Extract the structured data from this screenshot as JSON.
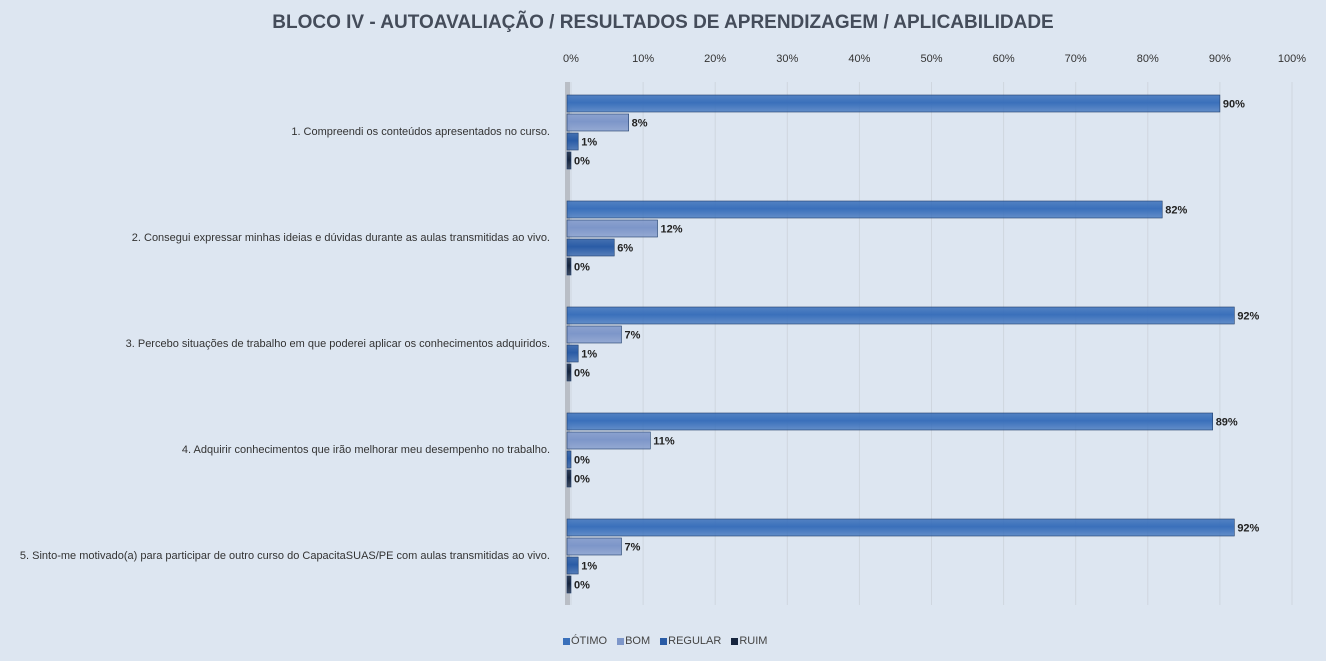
{
  "chart_data": {
    "type": "bar",
    "orientation": "horizontal",
    "title": "BLOCO IV - AUTOAVALIAÇÃO / RESULTADOS DE APRENDIZAGEM / APLICABILIDADE",
    "xlim": [
      0,
      100
    ],
    "xticks": [
      "0%",
      "10%",
      "20%",
      "30%",
      "40%",
      "50%",
      "60%",
      "70%",
      "80%",
      "90%",
      "100%"
    ],
    "grid": true,
    "legend_position": "bottom",
    "categories": [
      "1. Compreendi os conteúdos apresentados no curso.",
      "2. Consegui expressar minhas ideias e dúvidas durante as aulas transmitidas ao vivo.",
      "3. Percebo situações de trabalho em que poderei aplicar os conhecimentos adquiridos.",
      "4. Adquirir conhecimentos que irão melhorar meu desempenho no trabalho.",
      "5. Sinto-me motivado(a) para participar de outro curso do CapacitaSUAS/PE com aulas transmitidas ao vivo."
    ],
    "series": [
      {
        "name": "ÓTIMO",
        "color": "#3a70bb",
        "values": [
          90,
          82,
          92,
          89,
          92
        ]
      },
      {
        "name": "BOM",
        "color": "#7d96c9",
        "values": [
          8,
          12,
          7,
          11,
          7
        ]
      },
      {
        "name": "REGULAR",
        "color": "#2a5ca6",
        "values": [
          1,
          6,
          1,
          0,
          1
        ]
      },
      {
        "name": "RUIM",
        "color": "#16253e",
        "values": [
          0,
          0,
          0,
          0,
          0
        ]
      }
    ]
  }
}
